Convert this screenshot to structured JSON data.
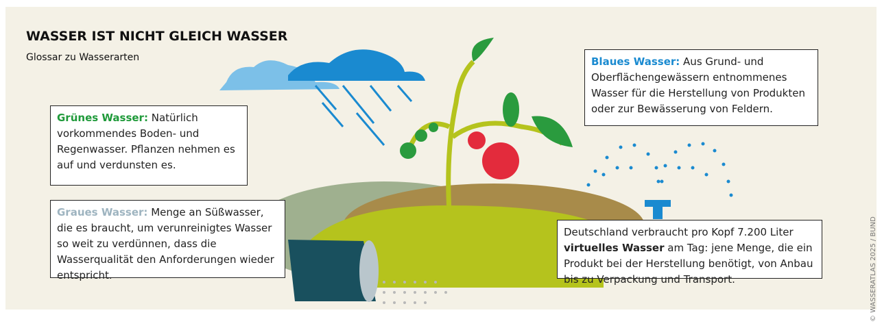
{
  "header": {
    "title": "WASSER IST NICHT GLEICH WASSER",
    "subtitle": "Glossar zu Wasserarten"
  },
  "boxes": [
    {
      "term": "Grünes Wasser:",
      "text": "Natürlich vorkommendes Boden- und Regenwasser. Pflanzen nehmen es auf und verdunsten es."
    },
    {
      "term": "Graues Wasser:",
      "text": "Menge an Süßwasser, die es braucht, um verunreinigtes Wasser so weit zu verdünnen, dass die Wasserqualität den Anforderungen wieder entspricht."
    },
    {
      "term": "Blaues Wasser:",
      "text": "Aus Grund- und Oberflächengewässern entnommenes Wasser für die Herstellung von Produkten oder zur Bewässerung von Feldern."
    }
  ],
  "note": {
    "before": "Deutschland verbraucht pro Kopf 7.200 Liter",
    "term": "virtuelles Wasser",
    "after": "am Tag: jene Menge, die ein Produkt bei der Herstellung benötigt, von Anbau bis zu Verpackung und Transport."
  },
  "credit": "© WASSERATLAS 2025 / BUND"
}
